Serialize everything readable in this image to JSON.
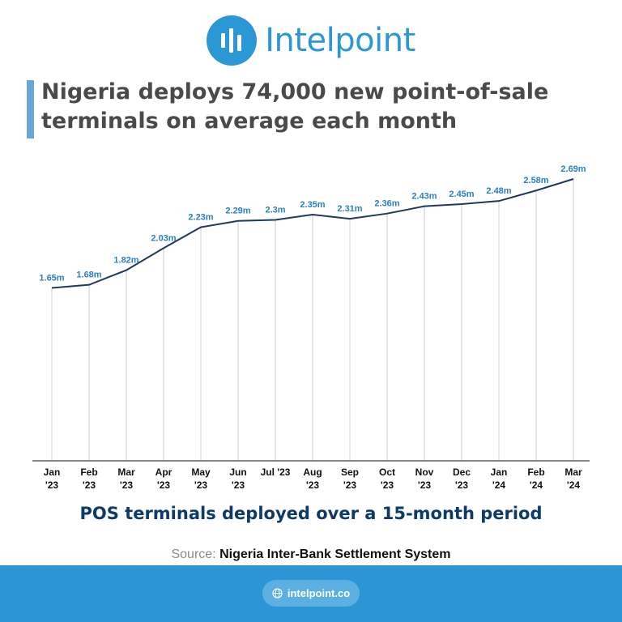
{
  "brand": {
    "name": "Intelpoint",
    "color": "#2b98d6"
  },
  "title": "Nigeria deploys 74,000 new point-of-sale terminals on average each month",
  "chart_data": {
    "type": "line",
    "categories": [
      "Jan '23",
      "Feb '23",
      "Mar '23",
      "Apr '23",
      "May '23",
      "Jun '23",
      "Jul '23",
      "Aug '23",
      "Sep '23",
      "Oct '23",
      "Nov '23",
      "Dec '23",
      "Jan '24",
      "Feb '24",
      "Mar '24"
    ],
    "tick_labels": [
      [
        "Jan",
        "'23"
      ],
      [
        "Feb",
        "'23"
      ],
      [
        "Mar",
        "'23"
      ],
      [
        "Apr",
        "'23"
      ],
      [
        "May",
        "'23"
      ],
      [
        "Jun",
        "'23"
      ],
      [
        "Jul '23"
      ],
      [
        "Aug",
        "'23"
      ],
      [
        "Sep",
        "'23"
      ],
      [
        "Oct",
        "'23"
      ],
      [
        "Nov",
        "'23"
      ],
      [
        "Dec",
        "'23"
      ],
      [
        "Jan",
        "'24"
      ],
      [
        "Feb",
        "'24"
      ],
      [
        "Mar",
        "'24"
      ]
    ],
    "values": [
      1.65,
      1.68,
      1.82,
      2.03,
      2.23,
      2.29,
      2.3,
      2.35,
      2.31,
      2.36,
      2.43,
      2.45,
      2.48,
      2.58,
      2.69
    ],
    "data_labels": [
      "1.65m",
      "1.68m",
      "1.82m",
      "2.03m",
      "2.23m",
      "2.29m",
      "2.3m",
      "2.35m",
      "2.31m",
      "2.36m",
      "2.43m",
      "2.45m",
      "2.48m",
      "2.58m",
      "2.69m"
    ],
    "unit": "million terminals",
    "ylim": [
      0,
      2.8
    ],
    "grid": "vertical drop lines at each point",
    "line_color": "#1e3a5f",
    "label_color": "#2b7fc2"
  },
  "caption": "POS terminals deployed over a 15-month period",
  "source": {
    "label": "Source:",
    "value": "Nigeria Inter-Bank Settlement System"
  },
  "footer": {
    "url": "intelpoint.co",
    "color": "#2c95d3"
  }
}
